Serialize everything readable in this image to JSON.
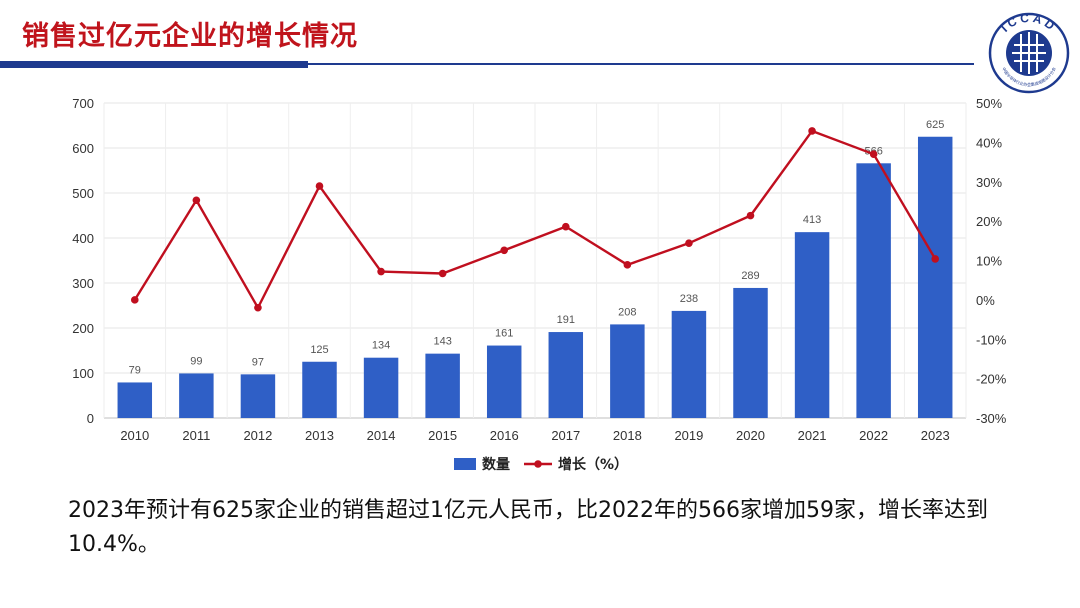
{
  "page": {
    "title": "销售过亿元企业的增长情况",
    "logo_text": "ICCAD",
    "logo_subtitle": "中国半导体行业协会集成电路设计分会",
    "caption": "2023年预计有625家企业的销售超过1亿元人民币，比2022年的566家增加59家，增长率达到10.4%。"
  },
  "colors": {
    "title": "#c0141c",
    "rule": "#1e3a8f",
    "bar": "#2f5fc6",
    "line": "#c00f1f"
  },
  "chart_data": {
    "type": "bar",
    "categories": [
      "2010",
      "2011",
      "2012",
      "2013",
      "2014",
      "2015",
      "2016",
      "2017",
      "2018",
      "2019",
      "2020",
      "2021",
      "2022",
      "2023"
    ],
    "series": [
      {
        "name": "数量",
        "type": "bar",
        "axis": "left",
        "values": [
          79,
          99,
          97,
          125,
          134,
          143,
          161,
          191,
          208,
          238,
          289,
          413,
          566,
          625
        ]
      },
      {
        "name": "增长（%）",
        "type": "line",
        "axis": "right",
        "values": [
          0.0,
          25.3,
          -2.0,
          28.9,
          7.2,
          6.7,
          12.6,
          18.6,
          8.9,
          14.4,
          21.4,
          42.9,
          37.0,
          10.4
        ]
      }
    ],
    "y_left": {
      "lim": [
        0,
        700
      ],
      "ticks": [
        "0",
        "100",
        "200",
        "300",
        "400",
        "500",
        "600",
        "700"
      ]
    },
    "y_right": {
      "lim": [
        -30,
        50
      ],
      "ticks": [
        "-30%",
        "-20%",
        "-10%",
        "0%",
        "10%",
        "20%",
        "30%",
        "40%",
        "50%"
      ]
    },
    "grid": true,
    "legend_position": "bottom-center",
    "data_labels": "bars"
  }
}
